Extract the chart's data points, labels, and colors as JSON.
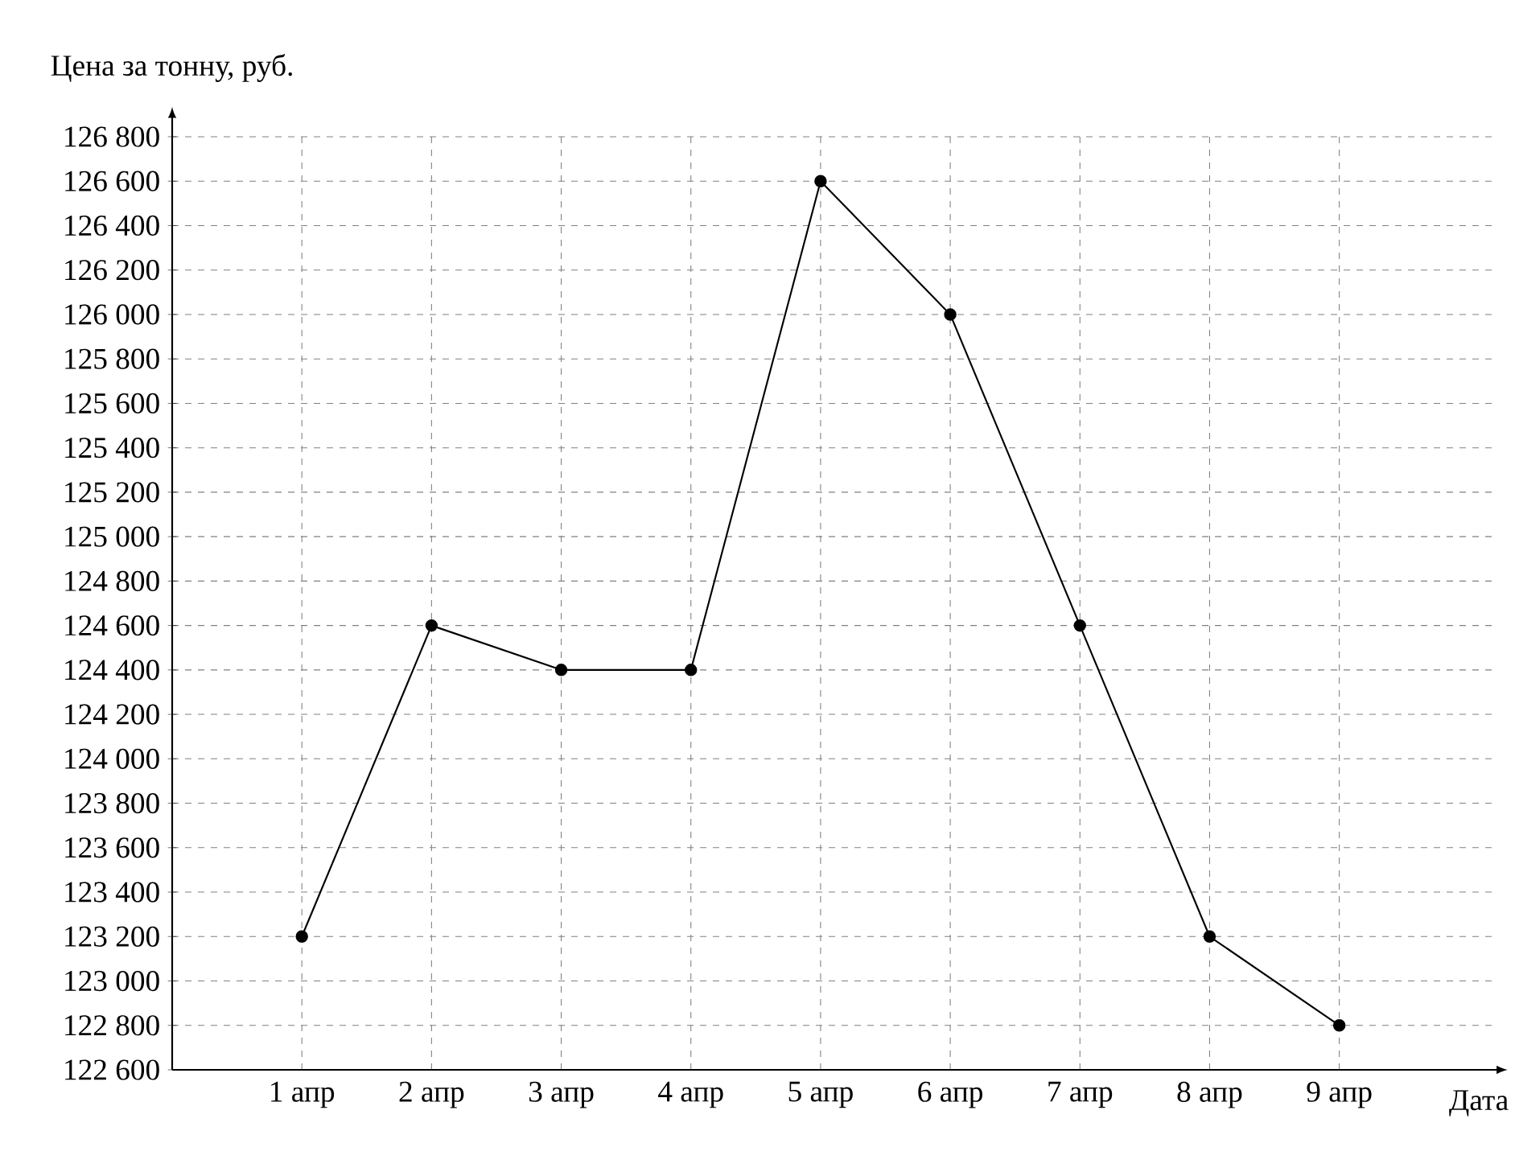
{
  "chart_data": {
    "type": "line",
    "ylabel": "Цена за тонну, руб.",
    "xlabel": "Дата",
    "categories": [
      "1 апр",
      "2 апр",
      "3 апр",
      "4 апр",
      "5 апр",
      "6 апр",
      "7 апр",
      "8 апр",
      "9 апр"
    ],
    "values": [
      123200,
      124600,
      124400,
      124400,
      126600,
      126000,
      124600,
      123200,
      122800
    ],
    "color": "#000000",
    "marker": "circle",
    "line_style": "solid",
    "grid": true,
    "ylim": [
      122600,
      126800
    ],
    "yticks": [
      {
        "value": 122600,
        "label": "122 600"
      },
      {
        "value": 122800,
        "label": "122 800"
      },
      {
        "value": 123000,
        "label": "123 000"
      },
      {
        "value": 123200,
        "label": "123 200"
      },
      {
        "value": 123400,
        "label": "123 400"
      },
      {
        "value": 123600,
        "label": "123 600"
      },
      {
        "value": 123800,
        "label": "123 800"
      },
      {
        "value": 124000,
        "label": "124 000"
      },
      {
        "value": 124200,
        "label": "124 200"
      },
      {
        "value": 124400,
        "label": "124 400"
      },
      {
        "value": 124600,
        "label": "124 600"
      },
      {
        "value": 124800,
        "label": "124 800"
      },
      {
        "value": 125000,
        "label": "125 000"
      },
      {
        "value": 125200,
        "label": "125 200"
      },
      {
        "value": 125400,
        "label": "125 400"
      },
      {
        "value": 125600,
        "label": "125 600"
      },
      {
        "value": 125800,
        "label": "125 800"
      },
      {
        "value": 126000,
        "label": "126 000"
      },
      {
        "value": 126200,
        "label": "126 200"
      },
      {
        "value": 126400,
        "label": "126 400"
      },
      {
        "value": 126600,
        "label": "126 600"
      },
      {
        "value": 126800,
        "label": "126 800"
      }
    ]
  }
}
